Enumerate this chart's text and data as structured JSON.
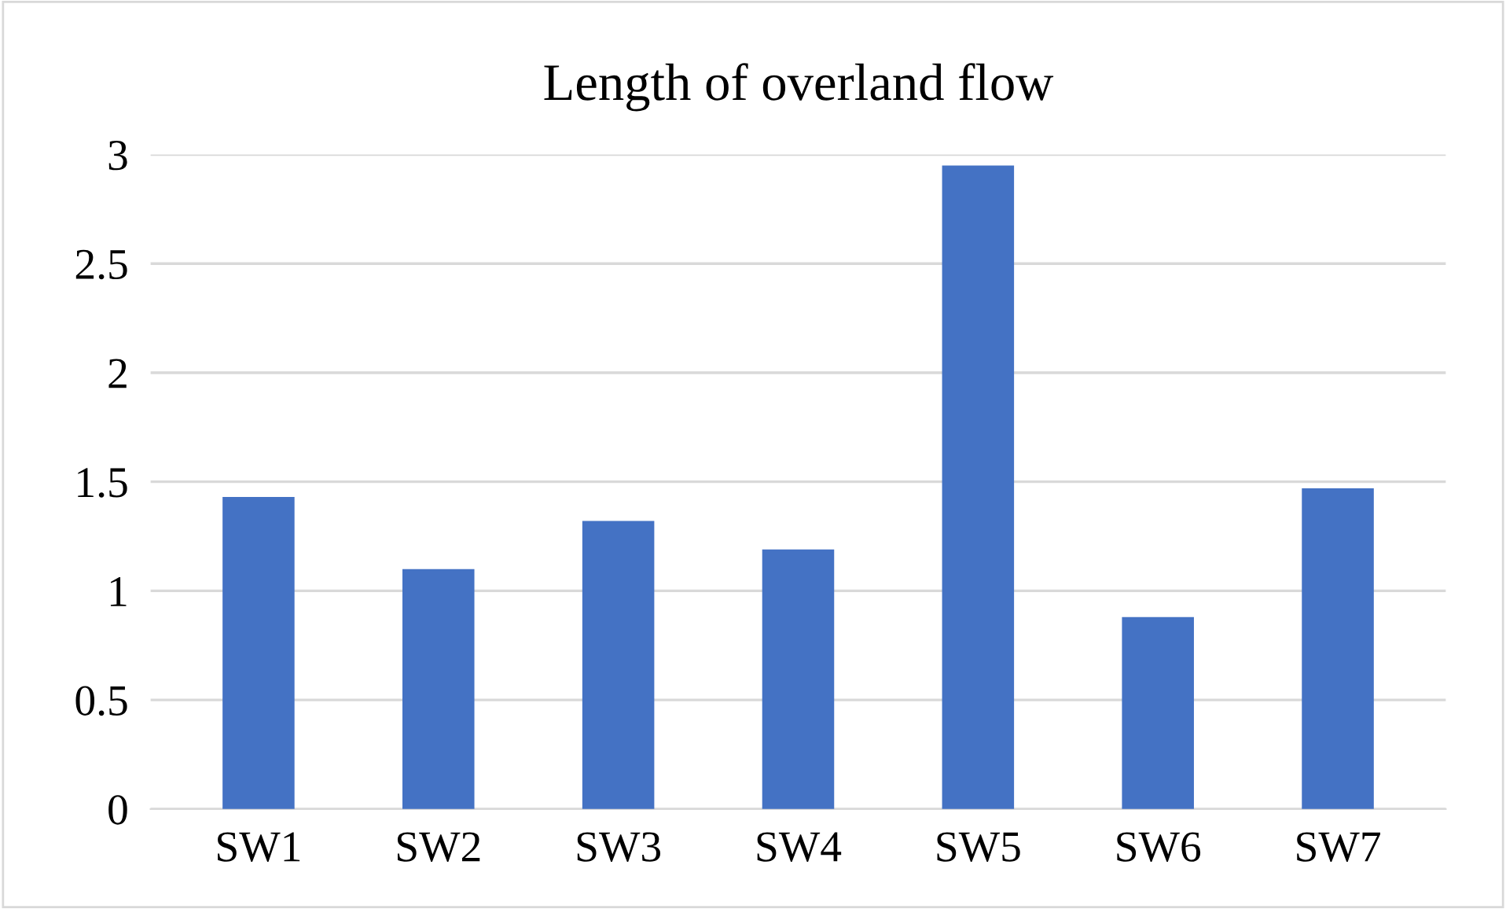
{
  "chart_data": {
    "type": "bar",
    "title": "Length of overland flow",
    "categories": [
      "SW1",
      "SW2",
      "SW3",
      "SW4",
      "SW5",
      "SW6",
      "SW7"
    ],
    "values": [
      1.43,
      1.1,
      1.32,
      1.19,
      2.95,
      0.88,
      1.47
    ],
    "color": "#4472c4",
    "ylim": [
      0,
      3
    ],
    "yticks": [
      0,
      0.5,
      1,
      1.5,
      2,
      2.5,
      3
    ],
    "grid": "y"
  }
}
